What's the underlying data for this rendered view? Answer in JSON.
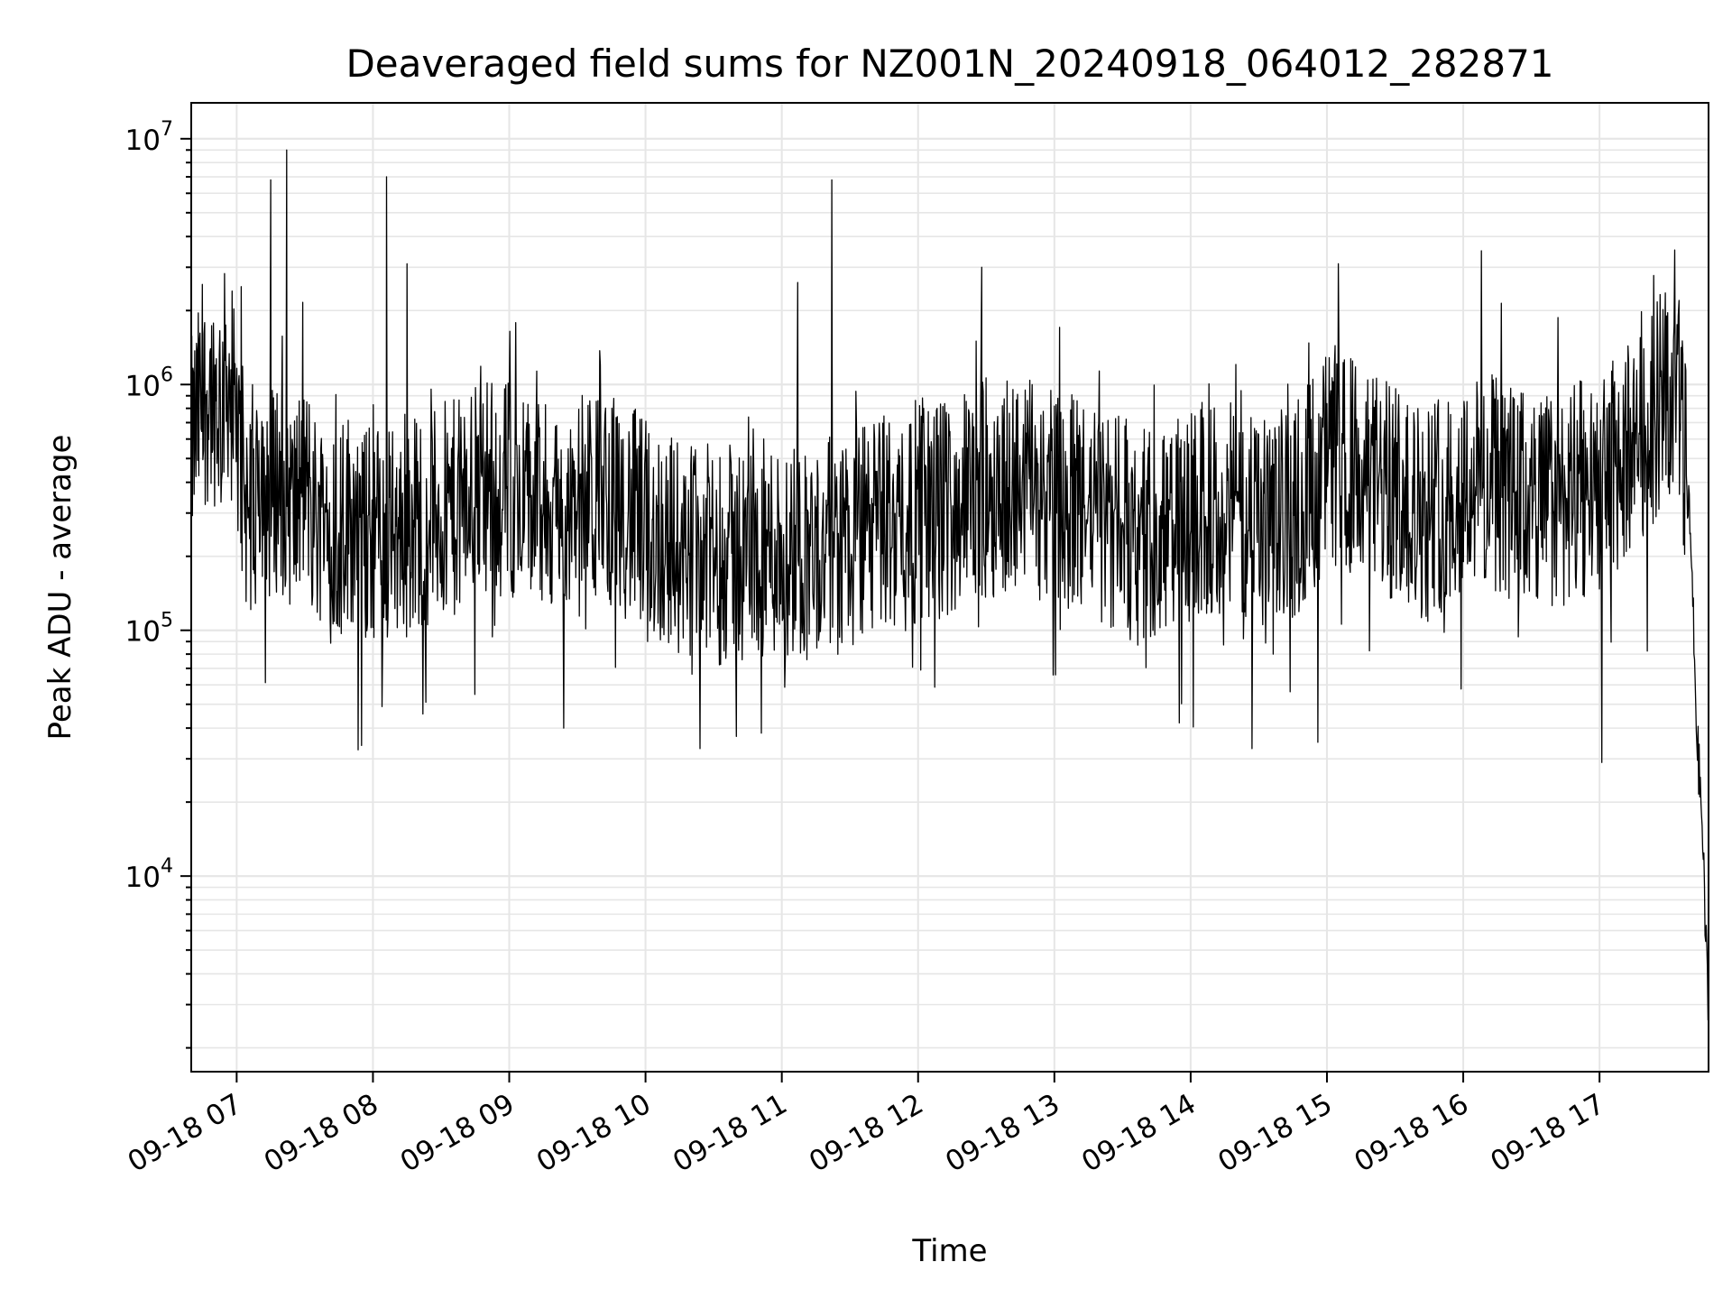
{
  "chart_data": {
    "type": "line",
    "title": "Deaveraged field sums for NZ001N_20240918_064012_282871",
    "xlabel": "Time",
    "ylabel": "Peak ADU - average",
    "yscale": "log",
    "xlim": [
      "2024-09-18 06:40",
      "2024-09-18 17:48"
    ],
    "ylim": [
      1600,
      14000000
    ],
    "grid": true,
    "line_color": "#000000",
    "x_ticks": [
      {
        "t": "2024-09-18 07:00",
        "label": "09-18 07"
      },
      {
        "t": "2024-09-18 08:00",
        "label": "09-18 08"
      },
      {
        "t": "2024-09-18 09:00",
        "label": "09-18 09"
      },
      {
        "t": "2024-09-18 10:00",
        "label": "09-18 10"
      },
      {
        "t": "2024-09-18 11:00",
        "label": "09-18 11"
      },
      {
        "t": "2024-09-18 12:00",
        "label": "09-18 12"
      },
      {
        "t": "2024-09-18 13:00",
        "label": "09-18 13"
      },
      {
        "t": "2024-09-18 14:00",
        "label": "09-18 14"
      },
      {
        "t": "2024-09-18 15:00",
        "label": "09-18 15"
      },
      {
        "t": "2024-09-18 16:00",
        "label": "09-18 16"
      },
      {
        "t": "2024-09-18 17:00",
        "label": "09-18 17"
      }
    ],
    "y_ticks": [
      {
        "value": 10000,
        "base": "10",
        "exp": "4"
      },
      {
        "value": 100000,
        "base": "10",
        "exp": "5"
      },
      {
        "value": 1000000,
        "base": "10",
        "exp": "6"
      },
      {
        "value": 10000000,
        "base": "10",
        "exp": "7"
      }
    ],
    "series": [
      {
        "points": [
          [
            "2024-09-18 06:40",
            550000
          ],
          [
            "2024-09-18 06:44",
            800000
          ],
          [
            "2024-09-18 06:48",
            950000
          ],
          [
            "2024-09-18 06:52",
            850000
          ],
          [
            "2024-09-18 06:56",
            1150000
          ],
          [
            "2024-09-18 07:00",
            600000
          ],
          [
            "2024-09-18 07:05",
            300000
          ],
          [
            "2024-09-18 07:10",
            500000
          ],
          [
            "2024-09-18 07:15",
            350000
          ],
          [
            "2024-09-18 07:20",
            450000
          ],
          [
            "2024-09-18 07:25",
            300000
          ],
          [
            "2024-09-18 07:30",
            400000
          ],
          [
            "2024-09-18 07:35",
            280000
          ],
          [
            "2024-09-18 07:40",
            320000
          ],
          [
            "2024-09-18 07:45",
            250000
          ],
          [
            "2024-09-18 07:50",
            300000
          ],
          [
            "2024-09-18 07:55",
            230000
          ],
          [
            "2024-09-18 08:00",
            260000
          ],
          [
            "2024-09-18 08:10",
            240000
          ],
          [
            "2024-09-18 08:20",
            280000
          ],
          [
            "2024-09-18 08:30",
            300000
          ],
          [
            "2024-09-18 08:40",
            320000
          ],
          [
            "2024-09-18 08:50",
            400000
          ],
          [
            "2024-09-18 09:00",
            380000
          ],
          [
            "2024-09-18 09:15",
            300000
          ],
          [
            "2024-09-18 09:30",
            320000
          ],
          [
            "2024-09-18 09:45",
            350000
          ],
          [
            "2024-09-18 10:00",
            260000
          ],
          [
            "2024-09-18 10:15",
            220000
          ],
          [
            "2024-09-18 10:30",
            200000
          ],
          [
            "2024-09-18 10:45",
            210000
          ],
          [
            "2024-09-18 11:00",
            220000
          ],
          [
            "2024-09-18 11:15",
            210000
          ],
          [
            "2024-09-18 11:30",
            230000
          ],
          [
            "2024-09-18 11:45",
            280000
          ],
          [
            "2024-09-18 12:00",
            300000
          ],
          [
            "2024-09-18 12:15",
            320000
          ],
          [
            "2024-09-18 12:30",
            380000
          ],
          [
            "2024-09-18 12:45",
            400000
          ],
          [
            "2024-09-18 13:00",
            350000
          ],
          [
            "2024-09-18 13:15",
            300000
          ],
          [
            "2024-09-18 13:30",
            260000
          ],
          [
            "2024-09-18 13:45",
            240000
          ],
          [
            "2024-09-18 14:00",
            280000
          ],
          [
            "2024-09-18 14:15",
            320000
          ],
          [
            "2024-09-18 14:30",
            260000
          ],
          [
            "2024-09-18 14:45",
            300000
          ],
          [
            "2024-09-18 15:00",
            500000
          ],
          [
            "2024-09-18 15:15",
            450000
          ],
          [
            "2024-09-18 15:30",
            350000
          ],
          [
            "2024-09-18 15:45",
            300000
          ],
          [
            "2024-09-18 16:00",
            400000
          ],
          [
            "2024-09-18 16:15",
            380000
          ],
          [
            "2024-09-18 16:30",
            330000
          ],
          [
            "2024-09-18 16:45",
            350000
          ],
          [
            "2024-09-18 17:00",
            400000
          ],
          [
            "2024-09-18 17:10",
            500000
          ],
          [
            "2024-09-18 17:20",
            650000
          ],
          [
            "2024-09-18 17:30",
            1000000
          ],
          [
            "2024-09-18 17:36",
            700000
          ],
          [
            "2024-09-18 17:40",
            250000
          ],
          [
            "2024-09-18 17:43",
            35000
          ],
          [
            "2024-09-18 17:45",
            18000
          ],
          [
            "2024-09-18 17:48",
            2500
          ]
        ],
        "spikes": [
          [
            "2024-09-18 07:15",
            6800000
          ],
          [
            "2024-09-18 07:22",
            9000000
          ],
          [
            "2024-09-18 08:06",
            7000000
          ],
          [
            "2024-09-18 08:15",
            3100000
          ],
          [
            "2024-09-18 11:07",
            2600000
          ],
          [
            "2024-09-18 11:22",
            6800000
          ],
          [
            "2024-09-18 12:28",
            3000000
          ],
          [
            "2024-09-18 15:05",
            3100000
          ],
          [
            "2024-09-18 16:08",
            3500000
          ],
          [
            "2024-09-18 17:35",
            2200000
          ],
          [
            "2024-09-18 07:02",
            2500000
          ],
          [
            "2024-09-18 06:58",
            2400000
          ]
        ],
        "dips": [
          [
            "2024-09-18 07:55",
            34000
          ],
          [
            "2024-09-18 10:24",
            33000
          ],
          [
            "2024-09-18 14:27",
            33000
          ],
          [
            "2024-09-18 14:56",
            35000
          ],
          [
            "2024-09-18 17:01",
            29000
          ],
          [
            "2024-09-18 09:24",
            40000
          ],
          [
            "2024-09-18 10:40",
            37000
          ],
          [
            "2024-09-18 13:55",
            42000
          ]
        ]
      }
    ]
  }
}
